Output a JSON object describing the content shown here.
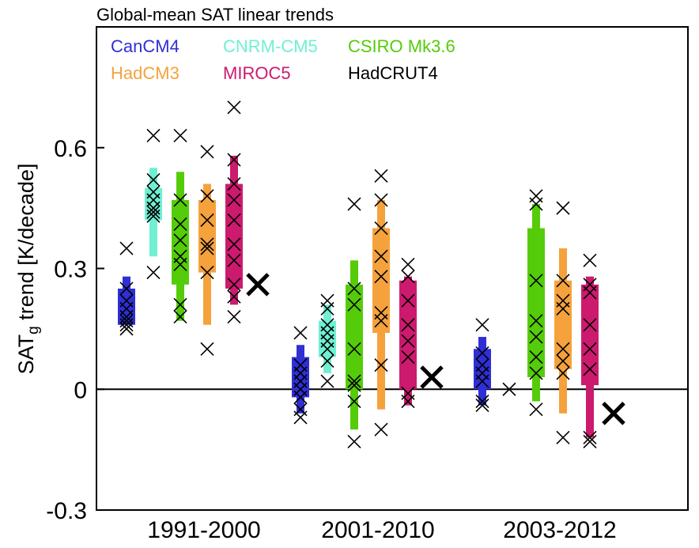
{
  "chart_data": {
    "type": "scatter",
    "title": "Global-mean SAT linear trends",
    "ylabel_main": "SAT",
    "ylabel_sub": "g",
    "ylabel_rest": " trend [K/decade]",
    "xlabel": "",
    "ylim": [
      -0.3,
      0.9
    ],
    "yticks": [
      -0.3,
      0,
      0.3,
      0.6
    ],
    "ytick_labels": [
      "-0.3",
      "0",
      "0.3",
      "0.6"
    ],
    "categories": [
      "1991-2000",
      "2001-2010",
      "2003-2012"
    ],
    "zero_line": true,
    "legend": [
      {
        "name": "CanCM4",
        "color": "#2f2fd6"
      },
      {
        "name": "CNRM-CM5",
        "color": "#6ff0d2"
      },
      {
        "name": "CSIRO Mk3.6",
        "color": "#55cc0a"
      },
      {
        "name": "HadCM3",
        "color": "#f5a23c"
      },
      {
        "name": "MIROC5",
        "color": "#cc1a6e"
      },
      {
        "name": "HadCRUT4",
        "color": "#000000"
      }
    ],
    "series": [
      {
        "name": "CanCM4",
        "color": "#2f2fd6",
        "periods": [
          {
            "whisker": [
              0.16,
              0.28
            ],
            "box": [
              0.16,
              0.25
            ],
            "members": [
              0.35,
              0.25,
              0.22,
              0.2,
              0.18,
              0.17,
              0.16,
              0.15
            ]
          },
          {
            "whisker": [
              -0.06,
              0.11
            ],
            "box": [
              -0.02,
              0.08
            ],
            "members": [
              0.14,
              0.06,
              0.04,
              0.02,
              0.0,
              -0.02,
              -0.05,
              -0.07
            ]
          },
          {
            "whisker": [
              -0.04,
              0.13
            ],
            "box": [
              0.0,
              0.1
            ],
            "members": [
              0.16,
              0.09,
              0.06,
              0.04,
              0.02,
              -0.03,
              -0.04
            ]
          }
        ]
      },
      {
        "name": "CNRM-CM5",
        "color": "#6ff0d2",
        "periods": [
          {
            "whisker": [
              0.33,
              0.55
            ],
            "box": [
              0.42,
              0.5
            ],
            "members": [
              0.63,
              0.52,
              0.49,
              0.47,
              0.45,
              0.44,
              0.43,
              0.29
            ]
          },
          {
            "whisker": [
              0.04,
              0.21
            ],
            "box": [
              0.08,
              0.17
            ],
            "members": [
              0.22,
              0.2,
              0.16,
              0.14,
              0.12,
              0.1,
              0.07,
              0.02
            ]
          },
          {
            "whisker": [
              0.0,
              0.0
            ],
            "box": [
              0.0,
              0.0
            ],
            "members": [
              0.0
            ]
          }
        ]
      },
      {
        "name": "CSIRO Mk3.6",
        "color": "#55cc0a",
        "periods": [
          {
            "whisker": [
              0.17,
              0.54
            ],
            "box": [
              0.26,
              0.47
            ],
            "members": [
              0.63,
              0.47,
              0.41,
              0.37,
              0.33,
              0.31,
              0.21,
              0.18
            ]
          },
          {
            "whisker": [
              -0.1,
              0.32
            ],
            "box": [
              0.0,
              0.26
            ],
            "members": [
              0.46,
              0.25,
              0.21,
              0.1,
              0.02,
              0.01,
              -0.03,
              -0.13
            ]
          },
          {
            "whisker": [
              -0.03,
              0.46
            ],
            "box": [
              0.03,
              0.4
            ],
            "members": [
              0.48,
              0.46,
              0.27,
              0.17,
              0.13,
              0.08,
              0.04,
              -0.05
            ]
          }
        ]
      },
      {
        "name": "HadCM3",
        "color": "#f5a23c",
        "periods": [
          {
            "whisker": [
              0.16,
              0.51
            ],
            "box": [
              0.29,
              0.47
            ],
            "members": [
              0.59,
              0.48,
              0.42,
              0.36,
              0.35,
              0.29,
              0.1
            ]
          },
          {
            "whisker": [
              -0.05,
              0.47
            ],
            "box": [
              0.14,
              0.4
            ],
            "members": [
              0.53,
              0.47,
              0.4,
              0.33,
              0.28,
              0.19,
              0.17,
              0.06,
              -0.1
            ]
          },
          {
            "whisker": [
              -0.06,
              0.35
            ],
            "box": [
              0.05,
              0.27
            ],
            "members": [
              0.45,
              0.27,
              0.22,
              0.2,
              0.1,
              0.07,
              0.04,
              -0.12
            ]
          }
        ]
      },
      {
        "name": "MIROC5",
        "color": "#cc1a6e",
        "periods": [
          {
            "whisker": [
              0.21,
              0.58
            ],
            "box": [
              0.25,
              0.51
            ],
            "members": [
              0.7,
              0.57,
              0.51,
              0.47,
              0.42,
              0.36,
              0.32,
              0.26,
              0.23,
              0.18
            ]
          },
          {
            "whisker": [
              -0.04,
              0.28
            ],
            "box": [
              0.0,
              0.27
            ],
            "members": [
              0.31,
              0.28,
              0.22,
              0.16,
              0.12,
              0.08,
              -0.01,
              -0.03
            ]
          },
          {
            "whisker": [
              -0.12,
              0.28
            ],
            "box": [
              0.01,
              0.26
            ],
            "members": [
              0.32,
              0.26,
              0.24,
              0.16,
              0.1,
              0.05,
              -0.12,
              -0.13
            ]
          }
        ]
      }
    ],
    "observations": {
      "name": "HadCRUT4",
      "values": [
        0.26,
        0.03,
        -0.06
      ]
    }
  }
}
